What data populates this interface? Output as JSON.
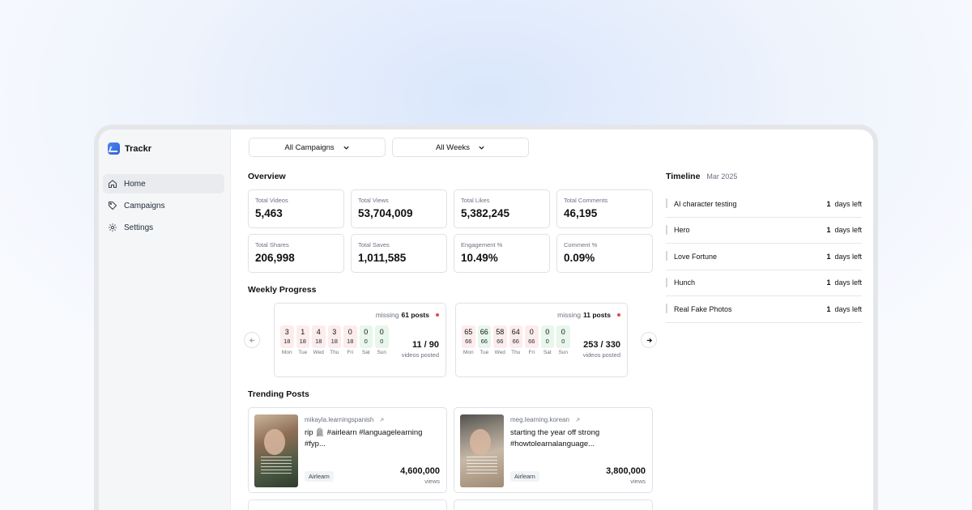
{
  "app": {
    "name": "Trackr"
  },
  "sidebar": {
    "items": [
      {
        "label": "Home",
        "icon": "home-icon",
        "active": true
      },
      {
        "label": "Campaigns",
        "icon": "tag-icon",
        "active": false
      },
      {
        "label": "Settings",
        "icon": "gear-icon",
        "active": false
      }
    ]
  },
  "filters": {
    "campaign": "All Campaigns",
    "week": "All Weeks"
  },
  "overview": {
    "title": "Overview",
    "stats": [
      {
        "label": "Total Videos",
        "value": "5,463"
      },
      {
        "label": "Total Views",
        "value": "53,704,009"
      },
      {
        "label": "Total Likes",
        "value": "5,382,245"
      },
      {
        "label": "Total Comments",
        "value": "46,195"
      },
      {
        "label": "Total Shares",
        "value": "206,998"
      },
      {
        "label": "Total Saves",
        "value": "1,011,585"
      },
      {
        "label": "Engagement %",
        "value": "10.49%"
      },
      {
        "label": "Comment %",
        "value": "0.09%"
      }
    ]
  },
  "weekly": {
    "title": "Weekly Progress",
    "cards": [
      {
        "missing_label": "missing",
        "missing_count": "61 posts",
        "days": [
          {
            "top": "3",
            "bot": "18",
            "name": "Mon",
            "status": "bad"
          },
          {
            "top": "1",
            "bot": "18",
            "name": "Tue",
            "status": "bad"
          },
          {
            "top": "4",
            "bot": "18",
            "name": "Wed",
            "status": "bad"
          },
          {
            "top": "3",
            "bot": "18",
            "name": "Thu",
            "status": "bad"
          },
          {
            "top": "0",
            "bot": "18",
            "name": "Fri",
            "status": "bad"
          },
          {
            "top": "0",
            "bot": "0",
            "name": "Sat",
            "status": "good"
          },
          {
            "top": "0",
            "bot": "0",
            "name": "Sun",
            "status": "good"
          }
        ],
        "posted": "11 / 90",
        "posted_label": "videos posted"
      },
      {
        "missing_label": "missing",
        "missing_count": "11 posts",
        "days": [
          {
            "top": "65",
            "bot": "66",
            "name": "Mon",
            "status": "bad"
          },
          {
            "top": "66",
            "bot": "66",
            "name": "Tue",
            "status": "good"
          },
          {
            "top": "58",
            "bot": "66",
            "name": "Wed",
            "status": "bad"
          },
          {
            "top": "64",
            "bot": "66",
            "name": "Thu",
            "status": "bad"
          },
          {
            "top": "0",
            "bot": "66",
            "name": "Fri",
            "status": "bad"
          },
          {
            "top": "0",
            "bot": "0",
            "name": "Sat",
            "status": "good"
          },
          {
            "top": "0",
            "bot": "0",
            "name": "Sun",
            "status": "good"
          }
        ],
        "posted": "253 / 330",
        "posted_label": "videos posted"
      }
    ]
  },
  "trending": {
    "title": "Trending Posts",
    "posts": [
      {
        "author": "mikayla.learningspanish",
        "caption": "rip 🪦 #airlearn #languagelearning #fyp...",
        "tag": "Airlearn",
        "views": "4,600,000",
        "views_label": "views"
      },
      {
        "author": "meg.learning.korean",
        "caption": "starting the year off strong #howtolearnalanguage...",
        "tag": "Airlearn",
        "views": "3,800,000",
        "views_label": "views"
      }
    ]
  },
  "timeline": {
    "title": "Timeline",
    "month": "Mar 2025",
    "items": [
      {
        "name": "AI character testing",
        "days": "1",
        "suffix": "days left"
      },
      {
        "name": "Hero",
        "days": "1",
        "suffix": "days left"
      },
      {
        "name": "Love Fortune",
        "days": "1",
        "suffix": "days left"
      },
      {
        "name": "Hunch",
        "days": "1",
        "suffix": "days left"
      },
      {
        "name": "Real Fake Photos",
        "days": "1",
        "suffix": "days left"
      }
    ]
  },
  "colors": {
    "accent": "#3b73e6",
    "missing_dot": "#ef4444",
    "bad_day": "#fdecec",
    "good_day": "#e8f6ec"
  }
}
